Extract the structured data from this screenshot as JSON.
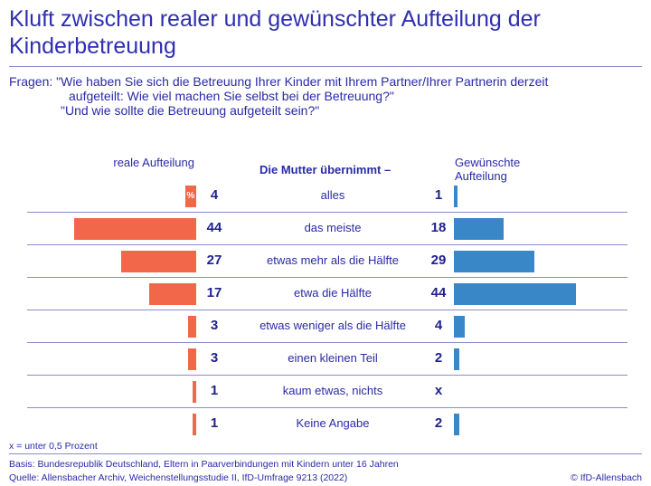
{
  "title": "Kluft zwischen realer und gewünschter Aufteilung der Kinderbetreuung",
  "question_line1": "Fragen: \"Wie haben Sie sich die Betreuung Ihrer Kinder mit Ihrem Partner/Ihrer Partnerin derzeit",
  "question_line2": "aufgeteilt: Wie viel machen Sie selbst bei der Betreuung?\"",
  "question_line3": "\"Und wie sollte die Betreuung aufgeteilt sein?\"",
  "header_left": "reale Aufteilung",
  "header_mid": "Die Mutter übernimmt –",
  "header_right": "Gewünschte Aufteilung",
  "percent_sign": "%",
  "chart_data": {
    "type": "bar",
    "orientation": "horizontal-diverging",
    "title": "Kluft zwischen realer und gewünschter Aufteilung der Kinderbetreuung",
    "categories": [
      "alles",
      "das meiste",
      "etwas mehr als die Hälfte",
      "etwa die Hälfte",
      "etwas weniger als die Hälfte",
      "einen kleinen Teil",
      "kaum etwas, nichts",
      "Keine Angabe"
    ],
    "series": [
      {
        "name": "reale Aufteilung",
        "color": "#f2664a",
        "values": [
          4,
          44,
          27,
          17,
          3,
          3,
          1,
          1
        ],
        "labels": [
          "4",
          "44",
          "27",
          "17",
          "3",
          "3",
          "1",
          "1"
        ]
      },
      {
        "name": "Gewünschte Aufteilung",
        "color": "#3a87c8",
        "values": [
          1,
          18,
          29,
          44,
          4,
          2,
          0.3,
          2
        ],
        "labels": [
          "1",
          "18",
          "29",
          "44",
          "4",
          "2",
          "x",
          "2"
        ]
      }
    ],
    "unit": "%"
  },
  "footnote": "x = unter 0,5 Prozent",
  "basis": "Basis: Bundesrepublik Deutschland, Eltern in Paarverbindungen mit Kindern unter 16 Jahren",
  "source": "Quelle: Allensbacher Archiv, Weichenstellungsstudie II, IfD-Umfrage 9213 (2022)",
  "copyright": "© IfD-Allensbach"
}
